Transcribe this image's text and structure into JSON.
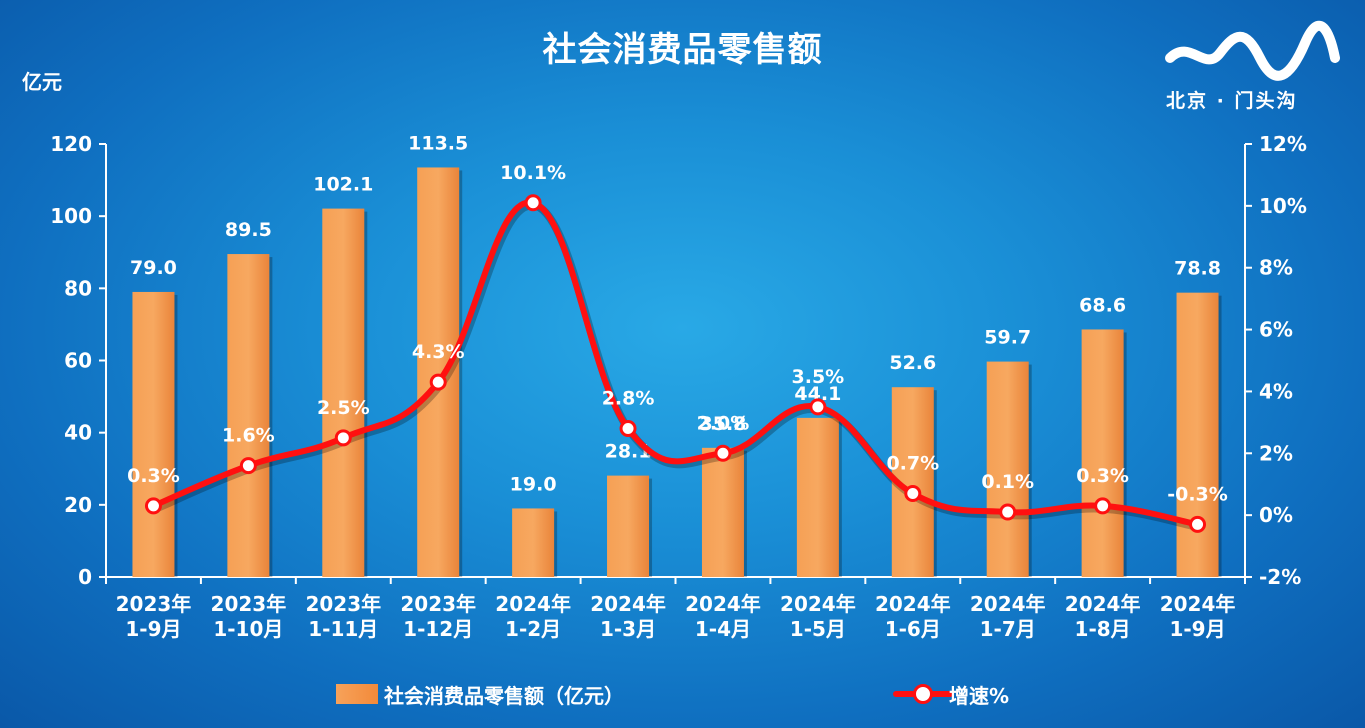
{
  "header": {
    "title": "社会消费品零售额",
    "unit_label": "亿元",
    "logo_text": "北京 · 门头沟"
  },
  "colors": {
    "bar": "#f39a4a",
    "line": "#ff1010",
    "text": "#ffffff"
  },
  "legend": {
    "bar_label": "社会消费品零售额（亿元）",
    "line_label": "增速%"
  },
  "chart_data": {
    "type": "bar",
    "title": "社会消费品零售额",
    "ylabel": "亿元",
    "categories": [
      [
        "2023年",
        "1-9月"
      ],
      [
        "2023年",
        "1-10月"
      ],
      [
        "2023年",
        "1-11月"
      ],
      [
        "2023年",
        "1-12月"
      ],
      [
        "2024年",
        "1-2月"
      ],
      [
        "2024年",
        "1-3月"
      ],
      [
        "2024年",
        "1-4月"
      ],
      [
        "2024年",
        "1-5月"
      ],
      [
        "2024年",
        "1-6月"
      ],
      [
        "2024年",
        "1-7月"
      ],
      [
        "2024年",
        "1-8月"
      ],
      [
        "2024年",
        "1-9月"
      ]
    ],
    "series": [
      {
        "name": "社会消费品零售额（亿元）",
        "type": "bar",
        "axis": "left",
        "values": [
          79.0,
          89.5,
          102.1,
          113.5,
          19.0,
          28.1,
          35.8,
          44.1,
          52.6,
          59.7,
          68.6,
          78.8
        ],
        "labels": [
          "79.0",
          "89.5",
          "102.1",
          "113.5",
          "19.0",
          "28.1",
          "35.8",
          "44.1",
          "52.6",
          "59.7",
          "68.6",
          "78.8"
        ]
      },
      {
        "name": "增速%",
        "type": "line",
        "axis": "right",
        "values": [
          0.3,
          1.6,
          2.5,
          4.3,
          10.1,
          2.8,
          2.0,
          3.5,
          0.7,
          0.1,
          0.3,
          -0.3
        ],
        "labels": [
          "0.3%",
          "1.6%",
          "2.5%",
          "4.3%",
          "10.1%",
          "2.8%",
          "2.0%",
          "3.5%",
          "0.7%",
          "0.1%",
          "0.3%",
          "-0.3%"
        ]
      }
    ],
    "left_axis": {
      "ylim": [
        0,
        120
      ],
      "ticks": [
        "0",
        "20",
        "40",
        "60",
        "80",
        "100",
        "120"
      ]
    },
    "right_axis": {
      "ylim": [
        -2,
        12
      ],
      "ticks": [
        "-2%",
        "0%",
        "2%",
        "4%",
        "6%",
        "8%",
        "10%",
        "12%"
      ]
    },
    "grid": false,
    "legend_position": "bottom"
  }
}
